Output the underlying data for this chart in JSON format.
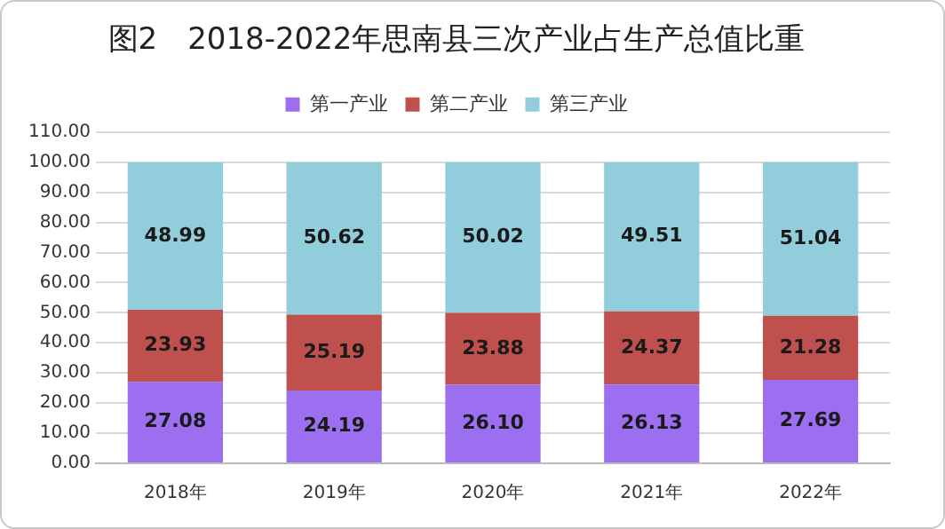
{
  "chart_data": {
    "type": "bar",
    "title": "图2　2018-2022年思南县三次产业占生产总值比重",
    "categories": [
      "2018年",
      "2019年",
      "2020年",
      "2021年",
      "2022年"
    ],
    "stacked": true,
    "series": [
      {
        "name": "第一产业",
        "color": "#9b6ff0",
        "values": [
          27.08,
          24.19,
          26.1,
          26.13,
          27.69
        ],
        "value_labels": [
          "27.08",
          "24.19",
          "26.10",
          "26.13",
          "27.69"
        ]
      },
      {
        "name": "第二产业",
        "color": "#c0504d",
        "values": [
          23.93,
          25.19,
          23.88,
          24.37,
          21.28
        ],
        "value_labels": [
          "23.93",
          "25.19",
          "23.88",
          "24.37",
          "21.28"
        ]
      },
      {
        "name": "第三产业",
        "color": "#92cddc",
        "values": [
          48.99,
          50.62,
          50.02,
          49.51,
          51.04
        ],
        "value_labels": [
          "48.99",
          "50.62",
          "50.02",
          "49.51",
          "51.04"
        ]
      }
    ],
    "ylim": [
      0,
      110
    ],
    "yticks": [
      {
        "value": 0,
        "label": "0.00"
      },
      {
        "value": 10,
        "label": "10.00"
      },
      {
        "value": 20,
        "label": "20.00"
      },
      {
        "value": 30,
        "label": "30.00"
      },
      {
        "value": 40,
        "label": "40.00"
      },
      {
        "value": 50,
        "label": "50.00"
      },
      {
        "value": 60,
        "label": "60.00"
      },
      {
        "value": 70,
        "label": "70.00"
      },
      {
        "value": 80,
        "label": "80.00"
      },
      {
        "value": 90,
        "label": "90.00"
      },
      {
        "value": 100,
        "label": "100.00"
      },
      {
        "value": 110,
        "label": "110.00"
      }
    ],
    "grid": "y",
    "legend": "top"
  }
}
